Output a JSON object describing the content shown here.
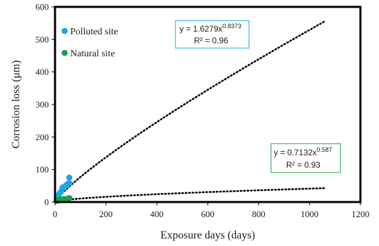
{
  "chart_data": {
    "type": "scatter",
    "title": "",
    "xlabel": "Exposure days (days)",
    "ylabel": "Corrosion loss (μm)",
    "xlim": [
      0,
      1200
    ],
    "ylim": [
      0,
      600
    ],
    "xticks": [
      0,
      200,
      400,
      600,
      800,
      1000,
      1200
    ],
    "yticks": [
      0,
      100,
      200,
      300,
      400,
      500,
      600
    ],
    "grid": false,
    "legend_position": "top-left",
    "series": [
      {
        "name": "Polluted site",
        "color": "#1aa7e8",
        "points": [
          {
            "x": 7,
            "y": 12
          },
          {
            "x": 14,
            "y": 22
          },
          {
            "x": 21,
            "y": 30
          },
          {
            "x": 28,
            "y": 38
          },
          {
            "x": 30,
            "y": 45
          },
          {
            "x": 42,
            "y": 50
          },
          {
            "x": 49,
            "y": 55
          },
          {
            "x": 56,
            "y": 58
          },
          {
            "x": 56,
            "y": 75
          }
        ],
        "trendline": {
          "model": "power",
          "a": 1.6279,
          "b": 0.8373,
          "x_range": [
            1,
            1060
          ],
          "equation_prefix": "y = 1.6279x",
          "equation_exponent": "0.8373",
          "r2_label": "R² = 0.96",
          "box_color": "#1aa7e8"
        }
      },
      {
        "name": "Natural site",
        "color": "#1f9e4a",
        "points": [
          {
            "x": 7,
            "y": 4
          },
          {
            "x": 14,
            "y": 6
          },
          {
            "x": 21,
            "y": 7
          },
          {
            "x": 28,
            "y": 8
          },
          {
            "x": 35,
            "y": 9
          },
          {
            "x": 42,
            "y": 9
          },
          {
            "x": 49,
            "y": 10
          },
          {
            "x": 56,
            "y": 12
          }
        ],
        "trendline": {
          "model": "power",
          "a": 0.7132,
          "b": 0.587,
          "x_range": [
            1,
            1060
          ],
          "equation_prefix": "y = 0.7132x",
          "equation_exponent": "0.587",
          "r2_label": "R² = 0.93",
          "box_color": "#1f9e4a"
        }
      }
    ]
  }
}
